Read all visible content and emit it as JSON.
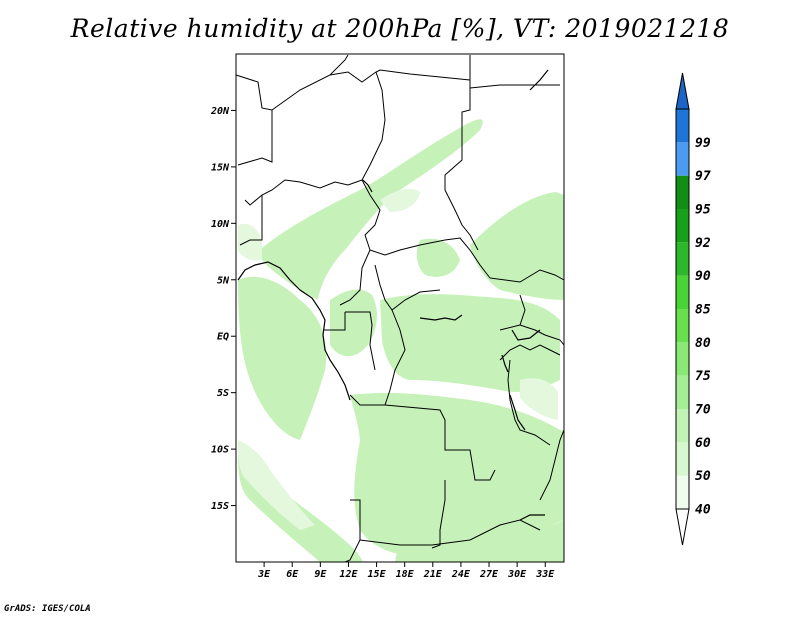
{
  "title": "Relative humidity at 200hPa [%], VT: 2019021218",
  "credit": "GrADS: IGES/COLA",
  "map": {
    "lon_range": [
      0,
      35
    ],
    "lat_range": [
      -20,
      25
    ],
    "lat_ticks": [
      {
        "value": 20,
        "label": "20N"
      },
      {
        "value": 15,
        "label": "15N"
      },
      {
        "value": 10,
        "label": "10N"
      },
      {
        "value": 5,
        "label": "5N"
      },
      {
        "value": 0,
        "label": "EQ"
      },
      {
        "value": -5,
        "label": "5S"
      },
      {
        "value": -10,
        "label": "10S"
      },
      {
        "value": -15,
        "label": "15S"
      }
    ],
    "lon_ticks": [
      {
        "value": 3,
        "label": "3E"
      },
      {
        "value": 6,
        "label": "6E"
      },
      {
        "value": 9,
        "label": "9E"
      },
      {
        "value": 12,
        "label": "12E"
      },
      {
        "value": 15,
        "label": "15E"
      },
      {
        "value": 18,
        "label": "18E"
      },
      {
        "value": 21,
        "label": "21E"
      },
      {
        "value": 24,
        "label": "24E"
      },
      {
        "value": 27,
        "label": "27E"
      },
      {
        "value": 30,
        "label": "30E"
      },
      {
        "value": 33,
        "label": "33E"
      }
    ]
  },
  "colorbar": {
    "levels": [
      {
        "label": "40",
        "color": "#f0fcee"
      },
      {
        "label": "50",
        "color": "#d7f7cf"
      },
      {
        "label": "60",
        "color": "#c2f3b6"
      },
      {
        "label": "70",
        "color": "#a6ee95"
      },
      {
        "label": "75",
        "color": "#8ae875"
      },
      {
        "label": "80",
        "color": "#68e04e"
      },
      {
        "label": "85",
        "color": "#48d437"
      },
      {
        "label": "90",
        "color": "#2cb82a"
      },
      {
        "label": "92",
        "color": "#17a11b"
      },
      {
        "label": "95",
        "color": "#128e14"
      },
      {
        "label": "97",
        "color": "#4b9cf0"
      },
      {
        "label": "99",
        "color": "#1f74d8"
      }
    ],
    "top_color": "#1c64c8",
    "bottom_color": "#ffffff"
  }
}
